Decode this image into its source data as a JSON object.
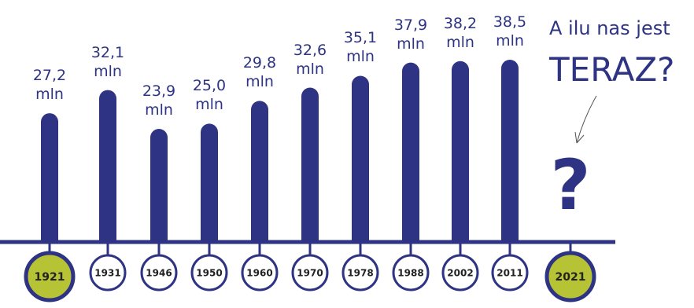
{
  "chart_data": {
    "type": "bar",
    "categories": [
      "1921",
      "1931",
      "1946",
      "1950",
      "1960",
      "1970",
      "1978",
      "1988",
      "2002",
      "2011",
      "2021"
    ],
    "values": [
      27.2,
      32.1,
      23.9,
      25.0,
      29.8,
      32.6,
      35.1,
      37.9,
      38.2,
      38.5,
      null
    ],
    "value_labels": [
      "27,2 mln",
      "32,1 mln",
      "23,9 mln",
      "25,0 mln",
      "29,8 mln",
      "32,6 mln",
      "35,1 mln",
      "37,9 mln",
      "38,2 mln",
      "38,5 mln",
      null
    ],
    "color": "#2e3483",
    "highlight_color": "#b5c334",
    "highlight": [
      "1921",
      "2021"
    ],
    "annotation": {
      "line1": "A ilu nas jest",
      "line2": "TERAZ?"
    },
    "unknown_marker": "?"
  }
}
